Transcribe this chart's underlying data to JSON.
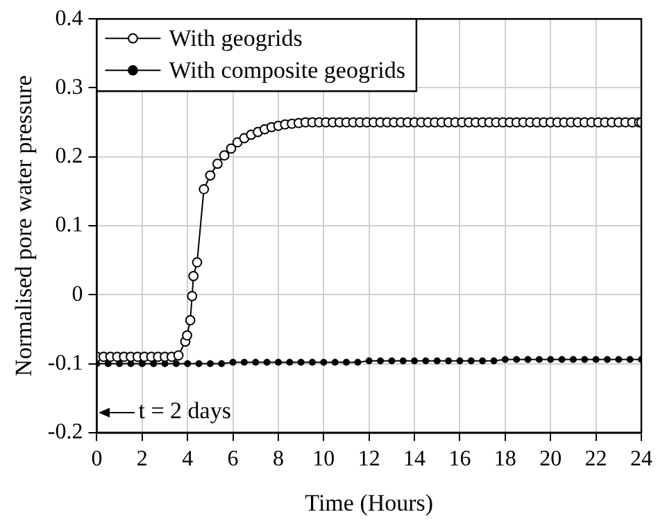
{
  "chart_data": {
    "type": "line",
    "xlabel": "Time (Hours)",
    "ylabel": "Normalised pore water pressure",
    "xlim": [
      0,
      24
    ],
    "xticks": [
      0,
      2,
      4,
      6,
      8,
      10,
      12,
      14,
      16,
      18,
      20,
      22,
      24
    ],
    "ylim": [
      -0.2,
      0.4
    ],
    "yticks": [
      -0.2,
      -0.1,
      0,
      0.1,
      0.2,
      0.3,
      0.4
    ],
    "grid": true,
    "legend": "top left",
    "marker": "circle",
    "line_style": "solid",
    "annotations": [
      "t = 2 days"
    ],
    "series": [
      {
        "name": "With geogrids",
        "color": "#000000",
        "x": [
          0,
          0.3,
          0.6,
          0.9,
          1.2,
          1.5,
          1.8,
          2.1,
          2.4,
          2.7,
          3.0,
          3.3,
          3.6,
          3.9,
          3.98,
          4.12,
          4.2,
          4.26,
          4.42,
          4.72,
          5.0,
          5.32,
          5.62,
          5.92,
          6.2,
          6.5,
          6.8,
          7.1,
          7.4,
          7.7,
          8.0,
          8.3,
          8.6,
          8.9,
          9.2,
          9.5,
          9.8,
          10.1,
          10.4,
          10.7,
          11.0,
          11.3,
          11.6,
          11.9,
          12.2,
          12.5,
          12.8,
          13.1,
          13.4,
          13.7,
          14.0,
          14.3,
          14.6,
          14.9,
          15.2,
          15.5,
          15.8,
          16.1,
          16.4,
          16.7,
          17.0,
          17.3,
          17.6,
          17.9,
          18.2,
          18.5,
          18.8,
          19.1,
          19.4,
          19.7,
          20.0,
          20.3,
          20.6,
          20.9,
          21.2,
          21.5,
          21.8,
          22.1,
          22.4,
          22.7,
          23.0,
          23.3,
          23.6,
          23.9,
          24
        ],
        "values": [
          -0.09,
          -0.09,
          -0.09,
          -0.09,
          -0.09,
          -0.09,
          -0.09,
          -0.09,
          -0.09,
          -0.09,
          -0.09,
          -0.09,
          -0.088,
          -0.068,
          -0.059,
          -0.037,
          -0.002,
          0.027,
          0.047,
          0.153,
          0.173,
          0.19,
          0.202,
          0.212,
          0.221,
          0.227,
          0.232,
          0.236,
          0.24,
          0.243,
          0.245,
          0.247,
          0.248,
          0.249,
          0.25,
          0.25,
          0.25,
          0.25,
          0.25,
          0.25,
          0.25,
          0.25,
          0.25,
          0.25,
          0.25,
          0.25,
          0.25,
          0.25,
          0.25,
          0.25,
          0.25,
          0.25,
          0.25,
          0.25,
          0.25,
          0.25,
          0.25,
          0.25,
          0.25,
          0.25,
          0.25,
          0.25,
          0.25,
          0.25,
          0.25,
          0.25,
          0.25,
          0.25,
          0.25,
          0.25,
          0.25,
          0.25,
          0.25,
          0.25,
          0.25,
          0.25,
          0.25,
          0.25,
          0.25,
          0.25,
          0.25,
          0.25,
          0.25,
          0.25,
          0.25
        ]
      },
      {
        "name": "With composite geogrids",
        "color": "#000000",
        "x": [
          0,
          0.5,
          1,
          1.5,
          2,
          2.5,
          3,
          3.5,
          4,
          4.5,
          5,
          5.5,
          6,
          6.5,
          7,
          7.5,
          8,
          8.5,
          9,
          9.5,
          10,
          10.5,
          11,
          11.5,
          12,
          12.5,
          13,
          13.5,
          14,
          14.5,
          15,
          15.5,
          16,
          16.5,
          17,
          17.5,
          18,
          18.5,
          19,
          19.5,
          20,
          20.5,
          21,
          21.5,
          22,
          22.5,
          23,
          23.5,
          24
        ],
        "values": [
          -0.1,
          -0.1,
          -0.1,
          -0.1,
          -0.1,
          -0.1,
          -0.1,
          -0.1,
          -0.1,
          -0.1,
          -0.1,
          -0.1,
          -0.098,
          -0.098,
          -0.098,
          -0.098,
          -0.098,
          -0.098,
          -0.098,
          -0.098,
          -0.098,
          -0.098,
          -0.098,
          -0.098,
          -0.096,
          -0.096,
          -0.096,
          -0.096,
          -0.096,
          -0.096,
          -0.096,
          -0.096,
          -0.096,
          -0.096,
          -0.096,
          -0.096,
          -0.094,
          -0.094,
          -0.094,
          -0.094,
          -0.094,
          -0.094,
          -0.094,
          -0.094,
          -0.094,
          -0.094,
          -0.094,
          -0.094,
          -0.094
        ]
      }
    ]
  }
}
